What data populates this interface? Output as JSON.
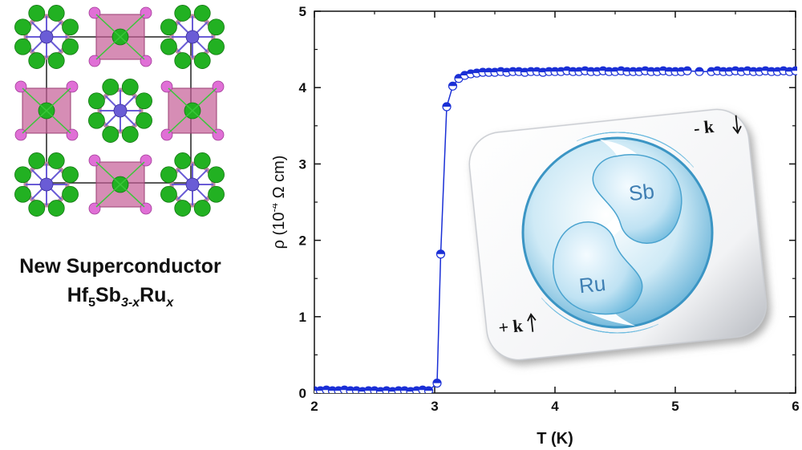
{
  "caption": {
    "line1": "New Superconductor",
    "formula_a": "Hf",
    "formula_a_sub": "5",
    "formula_b": "Sb",
    "formula_b_sub": "3-x",
    "formula_c": "Ru",
    "formula_c_sub": "x"
  },
  "inset": {
    "sb_label": "Sb",
    "ru_label": "Ru",
    "minus_k": "- k",
    "plus_k": "+ k"
  },
  "colors": {
    "series": "#1a2fd6",
    "green_atom": "#22b122",
    "pink_atom": "#e06fd6",
    "purple_atom": "#6a5cd6",
    "polyhedron": "#c45c96"
  },
  "chart_data": {
    "type": "scatter",
    "xlabel": "T (K)",
    "ylabel_main": "ρ (10",
    "ylabel_exp": "-4",
    "ylabel_unit": " Ω cm)",
    "xlim": [
      2,
      6
    ],
    "ylim": [
      0,
      5
    ],
    "x_ticks": [
      "2",
      "3",
      "4",
      "5",
      "6"
    ],
    "y_ticks": [
      "0",
      "1",
      "2",
      "3",
      "4",
      "5"
    ],
    "series": [
      {
        "x": [
          2.0,
          2.05,
          2.1,
          2.15,
          2.2,
          2.25,
          2.3,
          2.35,
          2.4,
          2.45,
          2.5,
          2.55,
          2.6,
          2.65,
          2.7,
          2.75,
          2.8,
          2.85,
          2.9,
          2.95,
          3.02,
          3.05,
          3.1,
          3.15,
          3.2,
          3.25,
          3.3,
          3.35,
          3.4,
          3.45,
          3.5,
          3.55,
          3.6,
          3.65,
          3.7,
          3.75,
          3.8,
          3.85,
          3.9,
          3.95,
          4.0,
          4.05,
          4.1,
          4.15,
          4.2,
          4.25,
          4.3,
          4.35,
          4.4,
          4.45,
          4.5,
          4.55,
          4.6,
          4.65,
          4.7,
          4.75,
          4.8,
          4.85,
          4.9,
          4.95,
          5.0,
          5.05,
          5.1,
          5.2,
          5.3,
          5.35,
          5.4,
          5.45,
          5.5,
          5.55,
          5.6,
          5.65,
          5.7,
          5.75,
          5.8,
          5.85,
          5.9,
          5.95,
          6.0
        ],
        "y": [
          0.03,
          0.03,
          0.04,
          0.03,
          0.03,
          0.04,
          0.03,
          0.03,
          0.02,
          0.03,
          0.03,
          0.02,
          0.03,
          0.02,
          0.03,
          0.03,
          0.02,
          0.03,
          0.04,
          0.03,
          0.13,
          1.82,
          3.75,
          4.02,
          4.12,
          4.16,
          4.18,
          4.19,
          4.2,
          4.2,
          4.2,
          4.21,
          4.2,
          4.21,
          4.21,
          4.2,
          4.21,
          4.21,
          4.2,
          4.21,
          4.21,
          4.21,
          4.22,
          4.21,
          4.21,
          4.22,
          4.21,
          4.21,
          4.22,
          4.21,
          4.21,
          4.22,
          4.21,
          4.21,
          4.21,
          4.22,
          4.21,
          4.21,
          4.22,
          4.21,
          4.21,
          4.21,
          4.22,
          4.21,
          4.21,
          4.22,
          4.21,
          4.21,
          4.22,
          4.21,
          4.22,
          4.21,
          4.21,
          4.22,
          4.21,
          4.21,
          4.22,
          4.21,
          4.22
        ]
      }
    ]
  }
}
